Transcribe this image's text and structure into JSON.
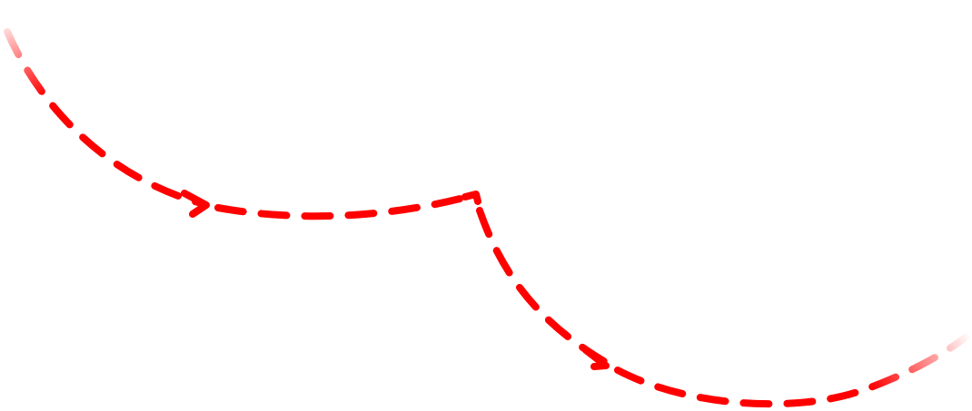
{
  "diagram": {
    "stroke_color": "#ff0000",
    "background_color": "#ffffff",
    "line_style": "dashed",
    "fade_start": true,
    "fade_end": true,
    "segments": [
      {
        "name": "curve-1",
        "direction": "down-right",
        "has_arrowhead": true
      },
      {
        "name": "connector",
        "direction": "right",
        "has_arrowhead": false
      },
      {
        "name": "curve-2",
        "direction": "down-right",
        "has_arrowhead": true
      },
      {
        "name": "curve-3",
        "direction": "up-right",
        "has_arrowhead": false
      }
    ],
    "arrowheads": [
      {
        "name": "arrowhead-1",
        "icon": "chevron-right-icon"
      },
      {
        "name": "arrowhead-2",
        "icon": "chevron-right-icon"
      }
    ]
  }
}
